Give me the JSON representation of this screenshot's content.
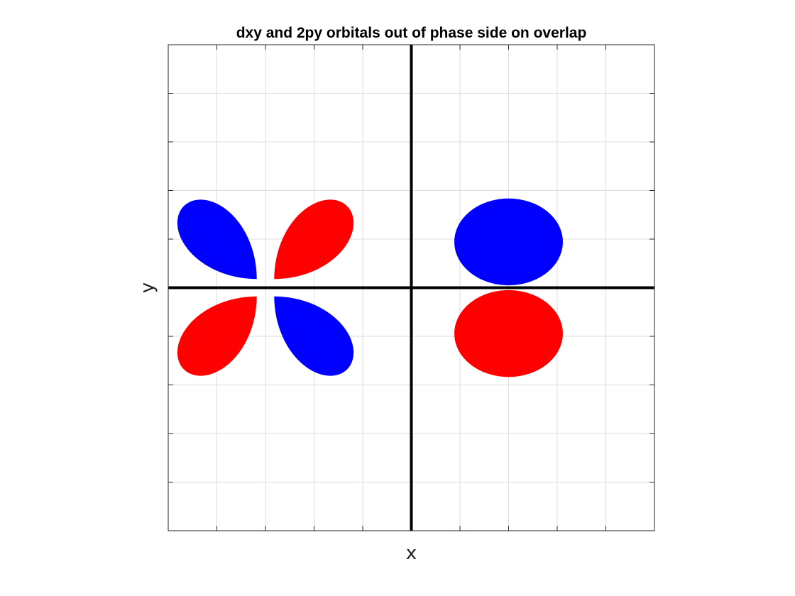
{
  "chart_data": {
    "type": "area",
    "title": "dxy and 2py orbitals out of phase side on overlap",
    "xlabel": "x",
    "ylabel": "y",
    "xlim": [
      -5,
      5
    ],
    "ylim": [
      -5,
      5
    ],
    "grid": true,
    "tick_labels_visible": false,
    "colors": {
      "positive": "#ff0000",
      "negative": "#0000ff",
      "axes": "#000000",
      "grid": "#dddddd"
    },
    "series": [
      {
        "orbital": "dxy",
        "center": [
          -3,
          0
        ],
        "lobes": [
          {
            "quadrant": "top-left",
            "phase": "negative"
          },
          {
            "quadrant": "top-right",
            "phase": "positive"
          },
          {
            "quadrant": "bottom-left",
            "phase": "positive"
          },
          {
            "quadrant": "bottom-right",
            "phase": "negative"
          }
        ]
      },
      {
        "orbital": "2py",
        "center": [
          2,
          0
        ],
        "lobes": [
          {
            "quadrant": "top",
            "phase": "negative"
          },
          {
            "quadrant": "bottom",
            "phase": "positive"
          }
        ]
      }
    ]
  }
}
